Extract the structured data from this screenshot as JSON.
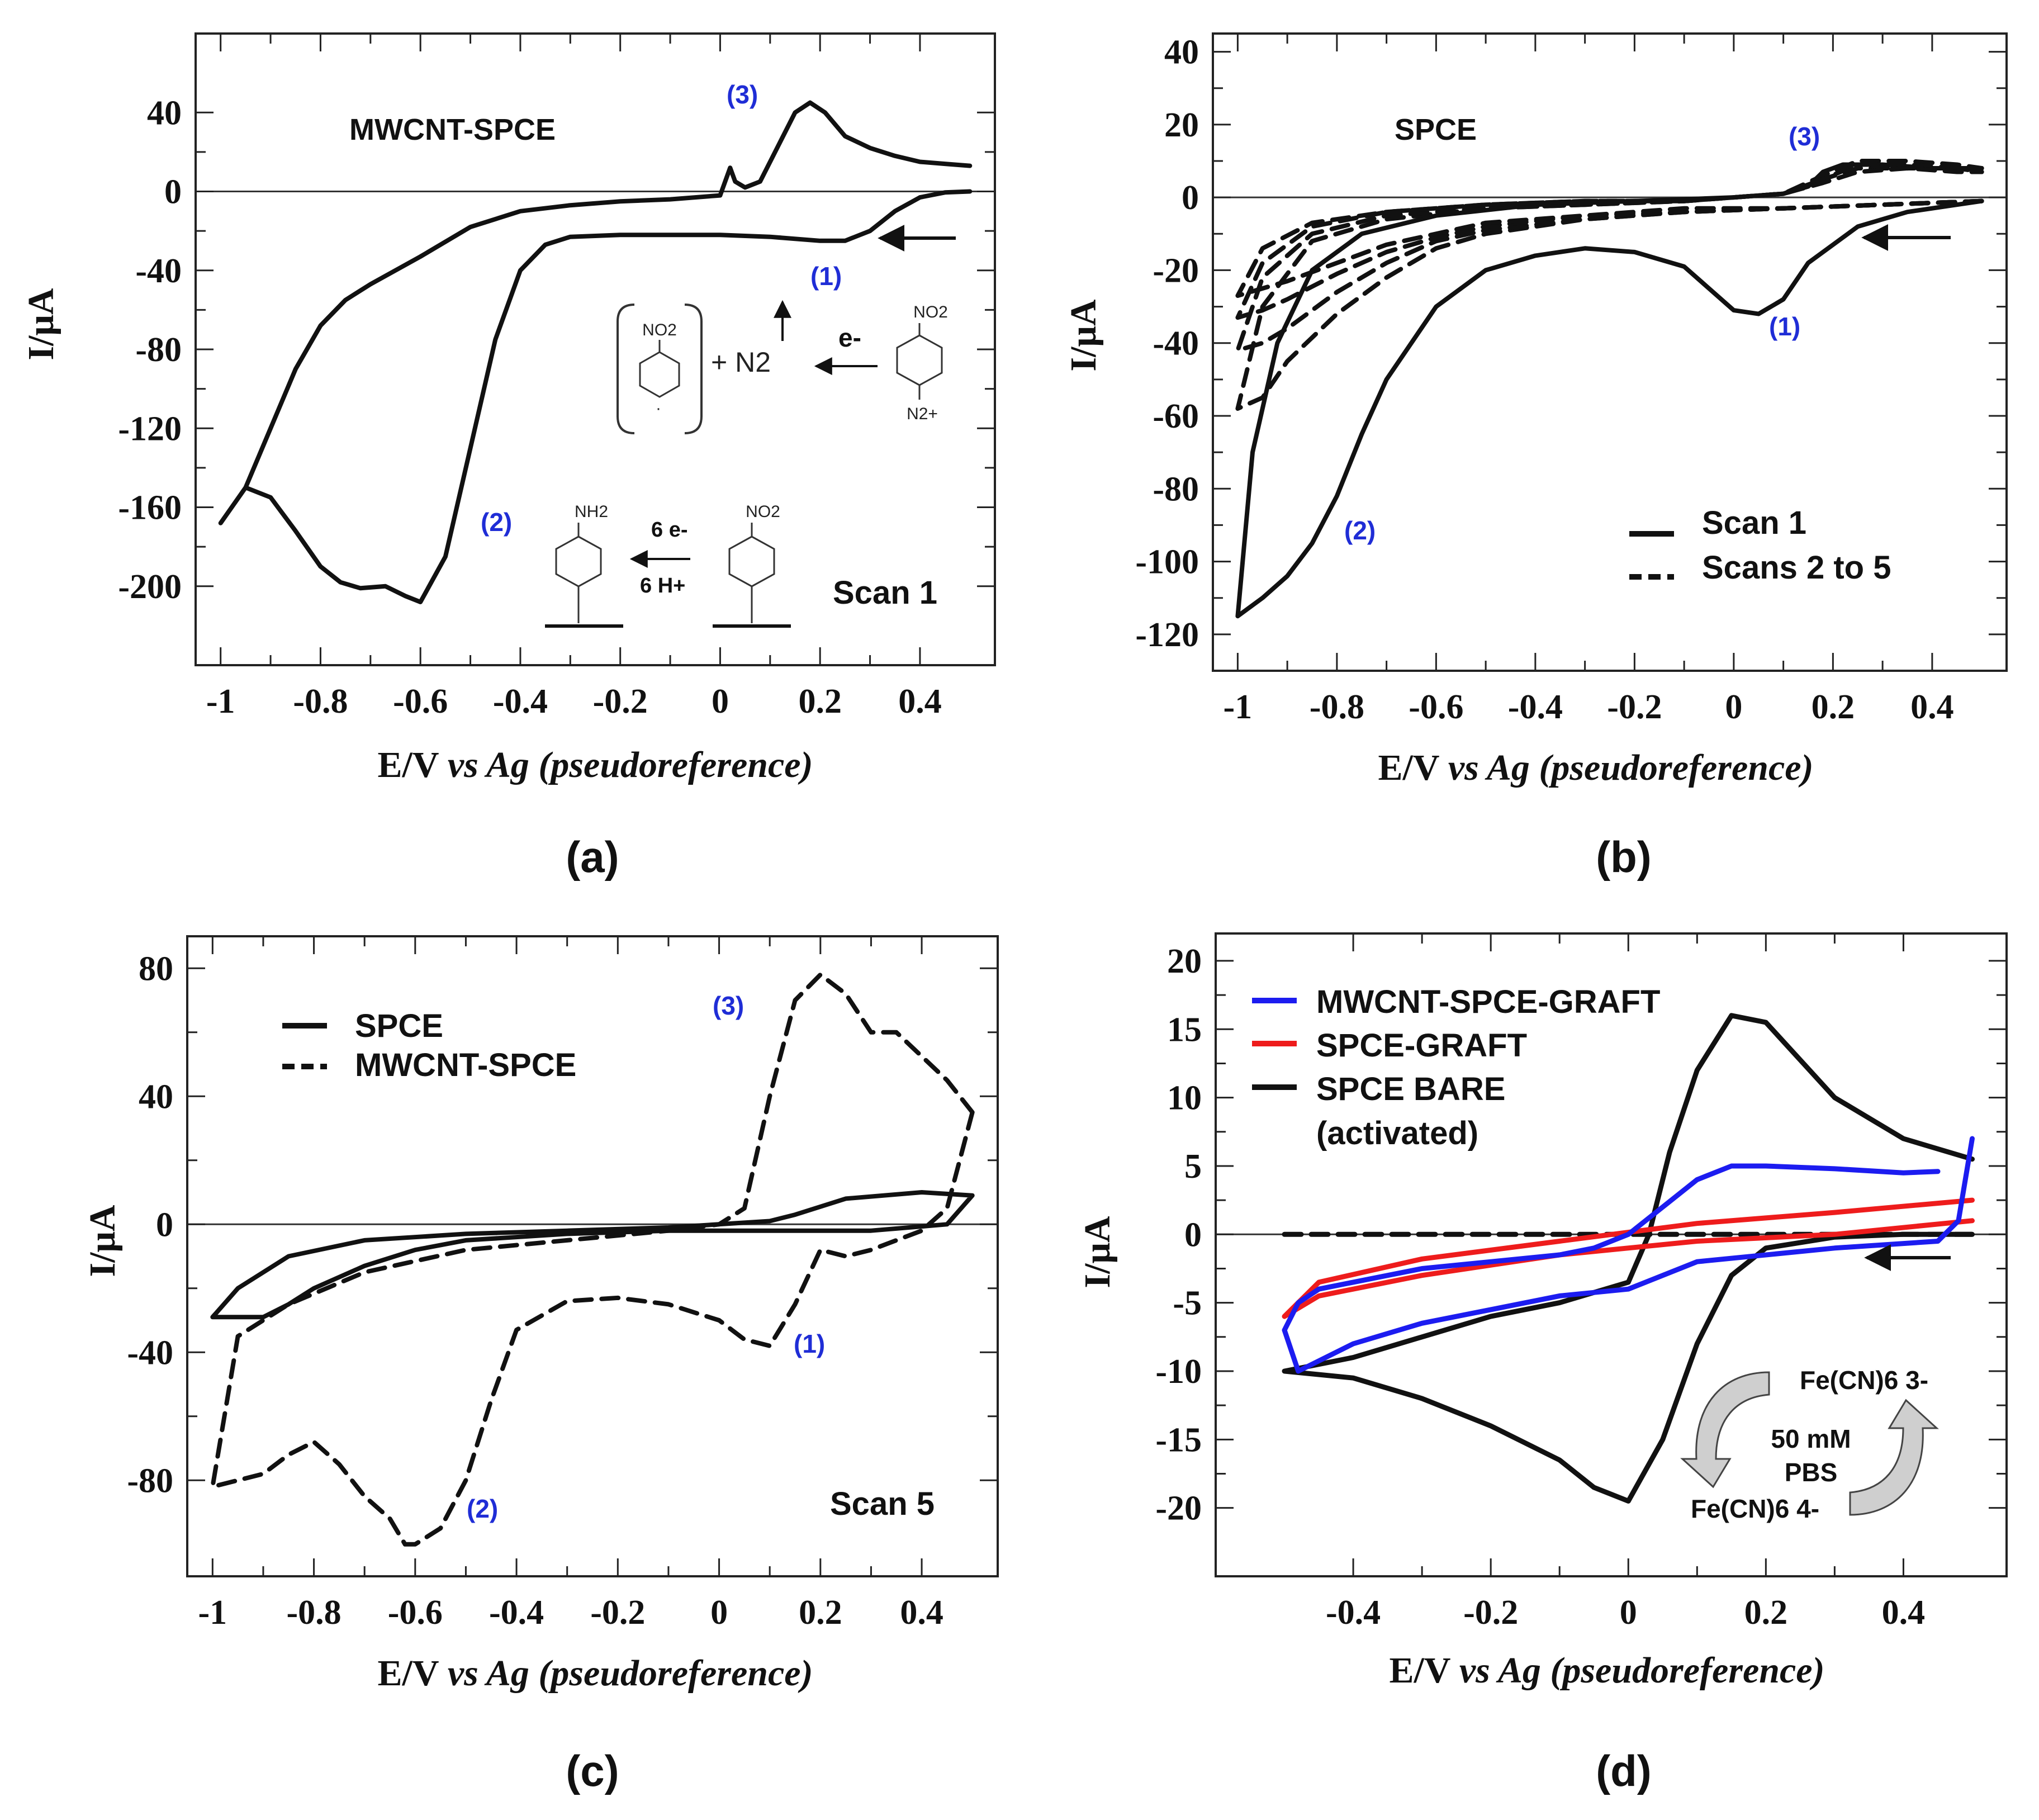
{
  "figure": {
    "panels": [
      "(a)",
      "(b)",
      "(c)",
      "(d)"
    ],
    "x_axis_title_prefix": "E/V",
    "x_axis_title_italic": "vs Ag (pseudoreference)",
    "y_axis_title": "I/μA"
  },
  "colors": {
    "black": "#111111",
    "blue": "#1c1cf0",
    "red": "#ee1c1c",
    "peak": "#1f2dd6",
    "arrow_fill": "#cfcfcf"
  },
  "scheme": {
    "a_top": {
      "no2": "NO2",
      "plus_n2": "+ N2",
      "electron": "e-",
      "n2_plus": "N2+"
    },
    "a_bottom": {
      "nh2": "NH2",
      "six_e": "6 e-",
      "six_h": "6 H+",
      "no2": "NO2"
    },
    "d": {
      "oxidized": "Fe(CN)6 3-",
      "medium_1": "50 mM",
      "medium_2": "PBS",
      "reduced": "Fe(CN)6 4-"
    }
  },
  "chart_data": [
    {
      "id": "a",
      "type": "line",
      "title": "MWCNT-SPCE",
      "xlabel": "E/V vs Ag (pseudoreference)",
      "ylabel": "I/μA",
      "xlim": [
        -1.05,
        0.55
      ],
      "ylim": [
        -240,
        80
      ],
      "xticks": [
        -1,
        -0.8,
        -0.6,
        -0.4,
        -0.2,
        0,
        0.2,
        0.4
      ],
      "xtick_labels": [
        "-1",
        "-0.8",
        "-0.6",
        "-0.4",
        "-0.2",
        "0",
        "0.2",
        "0.4"
      ],
      "yticks": [
        40,
        0,
        -40,
        -80,
        -120,
        -160,
        -200
      ],
      "ytick_labels": [
        "40",
        "0",
        "-40",
        "-80",
        "-120",
        "-160",
        "-200"
      ],
      "annotations": [
        "(1)",
        "(2)",
        "(3)",
        "Scan 1"
      ],
      "series": [
        {
          "name": "Scan 1",
          "style": "solid",
          "color": "#111111",
          "x": [
            0.5,
            0.45,
            0.4,
            0.35,
            0.3,
            0.25,
            0.2,
            0.1,
            0,
            -0.1,
            -0.2,
            -0.3,
            -0.35,
            -0.4,
            -0.45,
            -0.5,
            -0.55,
            -0.6,
            -0.63,
            -0.67,
            -0.72,
            -0.76,
            -0.8,
            -0.85,
            -0.9,
            -0.95,
            -1,
            -1,
            -0.95,
            -0.9,
            -0.85,
            -0.8,
            -0.75,
            -0.7,
            -0.6,
            -0.5,
            -0.4,
            -0.3,
            -0.2,
            -0.1,
            0,
            0.02,
            0.03,
            0.05,
            0.08,
            0.12,
            0.15,
            0.18,
            0.21,
            0.25,
            0.3,
            0.35,
            0.4,
            0.45,
            0.5
          ],
          "y": [
            0,
            -0.5,
            -3,
            -10,
            -20,
            -25,
            -25,
            -23,
            -22,
            -22,
            -22,
            -23,
            -27,
            -40,
            -75,
            -130,
            -185,
            -208,
            -205,
            -200,
            -201,
            -198,
            -190,
            -172,
            -155,
            -150,
            -168,
            -168,
            -150,
            -120,
            -90,
            -68,
            -55,
            -47,
            -33,
            -18,
            -10,
            -7,
            -5,
            -4,
            -2,
            12,
            5,
            2,
            5,
            25,
            40,
            45,
            40,
            28,
            22,
            18,
            15,
            14,
            13
          ]
        }
      ]
    },
    {
      "id": "b",
      "type": "line",
      "title": "SPCE",
      "xlabel": "E/V vs Ag (pseudoreference)",
      "ylabel": "I/μA",
      "xlim": [
        -1.05,
        0.55
      ],
      "ylim": [
        -130,
        45
      ],
      "xticks": [
        -1,
        -0.8,
        -0.6,
        -0.4,
        -0.2,
        0,
        0.2,
        0.4
      ],
      "xtick_labels": [
        "-1",
        "-0.8",
        "-0.6",
        "-0.4",
        "-0.2",
        "0",
        "0.2",
        "0.4"
      ],
      "yticks": [
        40,
        20,
        0,
        -20,
        -40,
        -60,
        -80,
        -100,
        -120
      ],
      "ytick_labels": [
        "40",
        "20",
        "0",
        "-20",
        "-40",
        "-60",
        "-80",
        "-100",
        "-120"
      ],
      "annotations": [
        "(1)",
        "(2)",
        "(3)"
      ],
      "legend": [
        "Scan 1",
        "Scans 2 to 5"
      ],
      "series": [
        {
          "name": "Scan 1",
          "style": "solid",
          "color": "#111111",
          "x": [
            0.5,
            0.45,
            0.35,
            0.25,
            0.15,
            0.1,
            0.05,
            0,
            -0.05,
            -0.1,
            -0.2,
            -0.3,
            -0.4,
            -0.5,
            -0.6,
            -0.7,
            -0.75,
            -0.8,
            -0.85,
            -0.9,
            -0.95,
            -1,
            -1,
            -0.97,
            -0.92,
            -0.85,
            -0.75,
            -0.6,
            -0.4,
            -0.2,
            0,
            0.1,
            0.15,
            0.18,
            0.22,
            0.3,
            0.4,
            0.5
          ],
          "y": [
            -1,
            -2,
            -4,
            -8,
            -18,
            -28,
            -32,
            -31,
            -25,
            -19,
            -15,
            -14,
            -16,
            -20,
            -30,
            -50,
            -65,
            -82,
            -95,
            -104,
            -110,
            -115,
            -115,
            -70,
            -40,
            -20,
            -10,
            -5,
            -2,
            -1,
            0,
            1,
            3,
            7,
            9,
            9,
            8,
            8
          ]
        },
        {
          "name": "Scans 2 to 5",
          "style": "dashed",
          "color": "#111111",
          "x": [
            0.5,
            0.3,
            0.1,
            -0.1,
            -0.3,
            -0.5,
            -0.6,
            -0.7,
            -0.8,
            -0.9,
            -0.95,
            -1,
            -1,
            -0.95,
            -0.85,
            -0.7,
            -0.5,
            -0.3,
            -0.1,
            0,
            0.1,
            0.18,
            0.25,
            0.35,
            0.45,
            0.5
          ],
          "y": [
            -1,
            -2,
            -3,
            -4,
            -6,
            -10,
            -14,
            -22,
            -32,
            -45,
            -55,
            -58,
            -58,
            -30,
            -12,
            -6,
            -3,
            -2,
            -1,
            0,
            1,
            6,
            10,
            10,
            9,
            8
          ]
        },
        {
          "name": "Scans 2 to 5",
          "style": "dashed",
          "color": "#111111",
          "x": [
            0.5,
            0.3,
            0.1,
            -0.1,
            -0.3,
            -0.5,
            -0.6,
            -0.7,
            -0.8,
            -0.9,
            -0.95,
            -1,
            -1,
            -0.95,
            -0.85,
            -0.7,
            -0.5,
            -0.3,
            -0.1,
            0,
            0.1,
            0.18,
            0.25,
            0.35,
            0.45,
            0.5
          ],
          "y": [
            -1,
            -2,
            -3,
            -4,
            -6,
            -9,
            -12,
            -18,
            -26,
            -36,
            -40,
            -42,
            -42,
            -22,
            -10,
            -5,
            -3,
            -2,
            -1,
            0,
            1,
            5,
            9,
            9,
            8,
            8
          ]
        },
        {
          "name": "Scans 2 to 5",
          "style": "dashed",
          "color": "#111111",
          "x": [
            0.5,
            0.3,
            0.1,
            -0.1,
            -0.3,
            -0.5,
            -0.6,
            -0.7,
            -0.8,
            -0.9,
            -0.95,
            -1,
            -1,
            -0.95,
            -0.85,
            -0.7,
            -0.5,
            -0.3,
            -0.1,
            0,
            0.1,
            0.18,
            0.25,
            0.35,
            0.45,
            0.5
          ],
          "y": [
            -1,
            -2,
            -3,
            -4,
            -5,
            -8,
            -11,
            -15,
            -21,
            -28,
            -31,
            -33,
            -33,
            -18,
            -8,
            -4,
            -2,
            -1,
            -1,
            0,
            1,
            5,
            8,
            8,
            8,
            7
          ]
        },
        {
          "name": "Scans 2 to 5",
          "style": "dashed",
          "color": "#111111",
          "x": [
            0.5,
            0.3,
            0.1,
            -0.1,
            -0.3,
            -0.5,
            -0.6,
            -0.7,
            -0.8,
            -0.9,
            -0.95,
            -1,
            -1,
            -0.95,
            -0.85,
            -0.7,
            -0.5,
            -0.3,
            -0.1,
            0,
            0.1,
            0.18,
            0.25,
            0.35,
            0.45,
            0.5
          ],
          "y": [
            -1,
            -2,
            -3,
            -3,
            -5,
            -7,
            -10,
            -13,
            -18,
            -23,
            -25,
            -27,
            -27,
            -14,
            -7,
            -4,
            -2,
            -1,
            -1,
            0,
            1,
            4,
            7,
            8,
            7,
            7
          ]
        }
      ]
    },
    {
      "id": "c",
      "type": "line",
      "title": "",
      "xlabel": "E/V vs Ag (pseudoreference)",
      "ylabel": "I/μA",
      "xlim": [
        -1.05,
        0.55
      ],
      "ylim": [
        -110,
        90
      ],
      "xticks": [
        -1,
        -0.8,
        -0.6,
        -0.4,
        -0.2,
        0,
        0.2,
        0.4
      ],
      "xtick_labels": [
        "-1",
        "-0.8",
        "-0.6",
        "-0.4",
        "-0.2",
        "0",
        "0.2",
        "0.4"
      ],
      "yticks": [
        80,
        40,
        0,
        -40,
        -80
      ],
      "ytick_labels": [
        "80",
        "40",
        "0",
        "-40",
        "-80"
      ],
      "annotations": [
        "(1)",
        "(2)",
        "(3)",
        "Scan 5"
      ],
      "legend": [
        "SPCE",
        "MWCNT-SPCE"
      ],
      "series": [
        {
          "name": "SPCE",
          "style": "solid",
          "color": "#111111",
          "x": [
            0.5,
            0.45,
            0.3,
            0.1,
            -0.1,
            -0.3,
            -0.5,
            -0.6,
            -0.7,
            -0.8,
            -0.85,
            -0.9,
            -0.95,
            -1,
            -1,
            -0.95,
            -0.85,
            -0.7,
            -0.5,
            -0.3,
            -0.1,
            0.1,
            0.15,
            0.25,
            0.4,
            0.5
          ],
          "y": [
            9,
            0,
            -2,
            -2,
            -2,
            -3,
            -5,
            -8,
            -13,
            -20,
            -25,
            -29,
            -29,
            -29,
            -29,
            -20,
            -10,
            -5,
            -3,
            -2,
            -1,
            1,
            3,
            8,
            10,
            9
          ]
        },
        {
          "name": "MWCNT-SPCE",
          "style": "dashed",
          "color": "#111111",
          "x": [
            0.5,
            0.45,
            0.4,
            0.35,
            0.3,
            0.25,
            0.2,
            0.15,
            0.1,
            0.05,
            0,
            -0.1,
            -0.2,
            -0.3,
            -0.4,
            -0.45,
            -0.5,
            -0.55,
            -0.6,
            -0.62,
            -0.65,
            -0.7,
            -0.75,
            -0.8,
            -0.85,
            -0.9,
            -0.95,
            -1,
            -1,
            -0.95,
            -0.85,
            -0.7,
            -0.5,
            -0.3,
            -0.1,
            0,
            0.05,
            0.1,
            0.15,
            0.2,
            0.25,
            0.3,
            0.35,
            0.45,
            0.5
          ],
          "y": [
            35,
            5,
            -2,
            -5,
            -8,
            -10,
            -8,
            -25,
            -38,
            -36,
            -30,
            -25,
            -23,
            -24,
            -33,
            -55,
            -80,
            -95,
            -100,
            -100,
            -92,
            -85,
            -75,
            -68,
            -72,
            -78,
            -80,
            -82,
            -82,
            -35,
            -25,
            -15,
            -8,
            -5,
            -2,
            0,
            5,
            40,
            70,
            78,
            72,
            60,
            60,
            45,
            35
          ]
        }
      ]
    },
    {
      "id": "d",
      "type": "line",
      "title": "",
      "xlabel": "E/V vs Ag (pseudoreference)",
      "ylabel": "I/μA",
      "xlim": [
        -0.6,
        0.55
      ],
      "ylim": [
        -25,
        22
      ],
      "xticks": [
        -0.4,
        -0.2,
        0,
        0.2,
        0.4
      ],
      "xtick_labels": [
        "-0.4",
        "-0.2",
        "0",
        "0.2",
        "0.4"
      ],
      "yticks": [
        20,
        15,
        10,
        5,
        0,
        -5,
        -10,
        -15,
        -20
      ],
      "ytick_labels": [
        "20",
        "15",
        "10",
        "5",
        "0",
        "-5",
        "-10",
        "-15",
        "-20"
      ],
      "legend": [
        "MWCNT-SPCE-GRAFT",
        "SPCE-GRAFT",
        "SPCE BARE",
        "(activated)"
      ],
      "series": [
        {
          "name": "SPCE BARE (activated)",
          "style": "solid",
          "color": "#111111",
          "x": [
            0.5,
            0.4,
            0.3,
            0.2,
            0.15,
            0.1,
            0.05,
            0,
            -0.05,
            -0.1,
            -0.2,
            -0.3,
            -0.4,
            -0.5,
            -0.5,
            -0.4,
            -0.3,
            -0.2,
            -0.1,
            0,
            0.03,
            0.06,
            0.1,
            0.15,
            0.2,
            0.3,
            0.4,
            0.5
          ],
          "y": [
            0,
            0,
            -0.2,
            -1,
            -3,
            -8,
            -15,
            -19.5,
            -18.5,
            -16.5,
            -14,
            -12,
            -10.5,
            -10,
            -10,
            -9,
            -7.5,
            -6,
            -5,
            -3.5,
            0,
            6,
            12,
            16,
            15.5,
            10,
            7,
            5.5
          ]
        },
        {
          "name": "SPCE BARE baseline",
          "style": "dashed",
          "color": "#111111",
          "x": [
            -0.5,
            -0.2,
            0,
            0.2,
            0.5
          ],
          "y": [
            0,
            0,
            0,
            0,
            0
          ]
        },
        {
          "name": "SPCE-GRAFT",
          "style": "solid",
          "color": "#ee1c1c",
          "x": [
            0.5,
            0.3,
            0.1,
            -0.1,
            -0.3,
            -0.45,
            -0.5,
            -0.5,
            -0.45,
            -0.3,
            -0.1,
            0.1,
            0.3,
            0.5
          ],
          "y": [
            1,
            0,
            -0.5,
            -1.5,
            -3,
            -4.5,
            -6,
            -6,
            -3.5,
            -1.8,
            -0.5,
            0.8,
            1.6,
            2.5
          ]
        },
        {
          "name": "MWCNT-SPCE-GRAFT",
          "style": "solid",
          "color": "#1c1cf0",
          "x": [
            0.5,
            0.48,
            0.45,
            0.3,
            0.1,
            0.05,
            0,
            -0.1,
            -0.2,
            -0.3,
            -0.4,
            -0.48,
            -0.5,
            -0.5,
            -0.48,
            -0.45,
            -0.4,
            -0.3,
            -0.1,
            -0.05,
            0,
            0.05,
            0.1,
            0.15,
            0.2,
            0.3,
            0.4,
            0.45
          ],
          "y": [
            7,
            1,
            -0.5,
            -1,
            -2,
            -3,
            -4,
            -4.5,
            -5.5,
            -6.5,
            -8,
            -10,
            -7,
            -7,
            -5,
            -4,
            -3.5,
            -2.5,
            -1.5,
            -1,
            0,
            2,
            4,
            5,
            5,
            4.8,
            4.5,
            4.6
          ]
        }
      ]
    }
  ]
}
